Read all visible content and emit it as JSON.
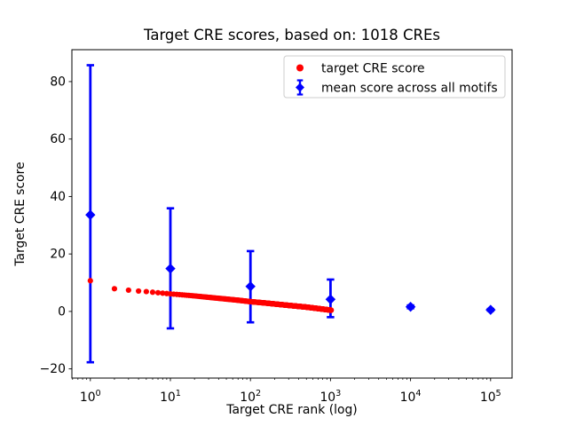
{
  "chart_data": {
    "type": "scatter",
    "title": "Target CRE scores, based on: 1018 CREs",
    "xlabel": "Target CRE rank (log)",
    "ylabel": "Target CRE score",
    "x_scale": "log",
    "x_tick_exponents": [
      0,
      1,
      2,
      3,
      4,
      5
    ],
    "y_ticks": [
      -20,
      0,
      20,
      40,
      60,
      80
    ],
    "xlim_log10": [
      -0.2306,
      5.2683
    ],
    "ylim": [
      -23.2,
      91.1
    ],
    "grid": false,
    "legend_position": "upper right",
    "series": [
      {
        "name": "target CRE score",
        "type": "scatter",
        "marker": "circle",
        "color": "#ff0000",
        "n_points": 1018,
        "anchor_ranks": [
          1,
          2,
          3,
          4,
          5,
          7,
          10,
          15,
          20,
          30,
          50,
          70,
          100,
          150,
          200,
          300,
          500,
          700,
          1000,
          1018
        ],
        "anchor_scores": [
          10.7,
          7.9,
          7.4,
          7.1,
          6.9,
          6.5,
          6.1,
          5.7,
          5.4,
          4.9,
          4.3,
          3.9,
          3.4,
          2.95,
          2.6,
          2.1,
          1.5,
          1.0,
          0.45,
          0.42
        ]
      },
      {
        "name": "mean score across all motifs",
        "type": "errorbar",
        "marker": "diamond",
        "color": "#0000ff",
        "ranks": [
          1,
          10,
          100,
          1000,
          10000,
          100000
        ],
        "means": [
          33.6,
          14.9,
          8.7,
          4.2,
          1.6,
          0.55
        ],
        "err_lo": [
          51.3,
          20.8,
          12.5,
          6.2,
          0.5,
          0.3
        ],
        "err_hi": [
          52.1,
          21.0,
          12.3,
          6.9,
          0.5,
          0.3
        ]
      }
    ],
    "colors": {
      "target_series": "#ff0000",
      "mean_series": "#0000ff",
      "axes": "#000000",
      "legend_border": "#cccccc",
      "background": "#ffffff"
    }
  }
}
